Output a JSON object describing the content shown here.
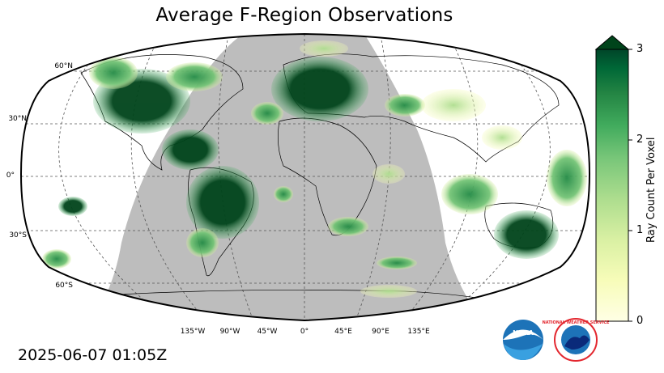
{
  "title": "Average F-Region Observations",
  "timestamp": "2025-06-07 01:05Z",
  "map": {
    "projection": "Robinson",
    "lat_labels": [
      "60°N",
      "30°N",
      "0°",
      "30°S",
      "60°S"
    ],
    "lon_labels": [
      "135°W",
      "90°W",
      "45°W",
      "0°",
      "45°E",
      "90°E",
      "135°E"
    ],
    "night_shade_color": "#bdbdbd",
    "ocean_color": "#ffffff"
  },
  "colorbar": {
    "label": "Ray Count Per Voxel",
    "ticks": [
      "0",
      "1",
      "2",
      "3"
    ],
    "min": 0,
    "max": 3,
    "extend": "max",
    "colors": [
      "#ffffe5",
      "#f7fcb9",
      "#d9f0a3",
      "#addd8e",
      "#78c679",
      "#41ab5d",
      "#238443",
      "#006837",
      "#004529"
    ]
  },
  "logos": {
    "noaa": {
      "name": "noaa-logo",
      "text": "NOAA"
    },
    "nws": {
      "name": "nws-logo",
      "text": "NATIONAL WEATHER SERVICE"
    }
  }
}
